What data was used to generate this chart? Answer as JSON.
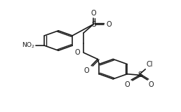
{
  "bg_color": "#ffffff",
  "line_color": "#1a1a1a",
  "lw": 1.2,
  "db_off": 0.013,
  "r1cx": 0.255,
  "r1cy": 0.685,
  "r1r": 0.115,
  "r2cx": 0.645,
  "r2cy": 0.355,
  "r2r": 0.115,
  "s1x": 0.505,
  "s1y": 0.875,
  "s2x": 0.835,
  "s2y": 0.285,
  "no2_text": "NO$_2$",
  "cl_text": "Cl",
  "o_text": "O",
  "s_text": "S"
}
